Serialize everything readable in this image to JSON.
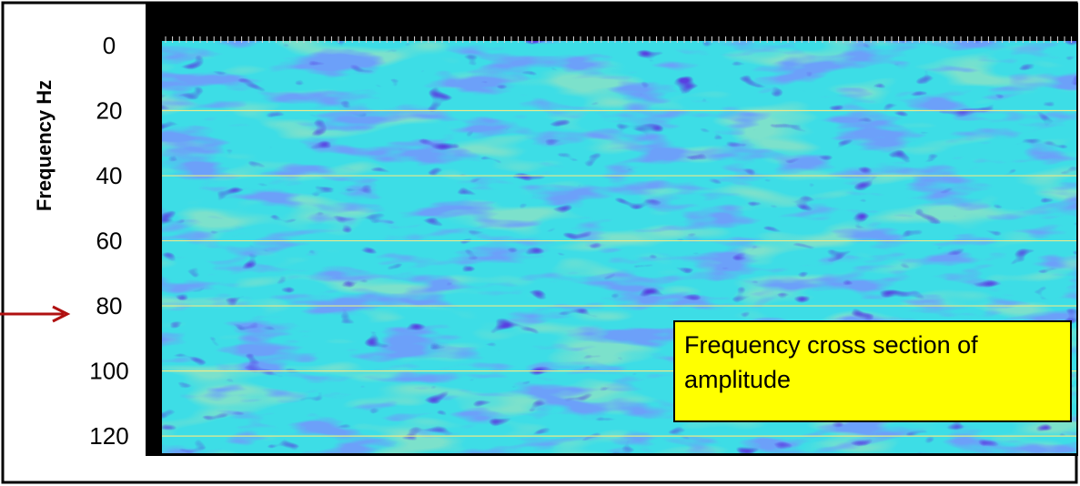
{
  "chart_data": {
    "type": "spectrogram",
    "y_label": "Frequency Hz",
    "ylim": [
      0,
      125
    ],
    "yticks": [
      0,
      20,
      40,
      60,
      80,
      100,
      120
    ],
    "grid": true,
    "grid_color": "#e8ea8c",
    "annotation": "Frequency cross section of amplitude"
  }
}
